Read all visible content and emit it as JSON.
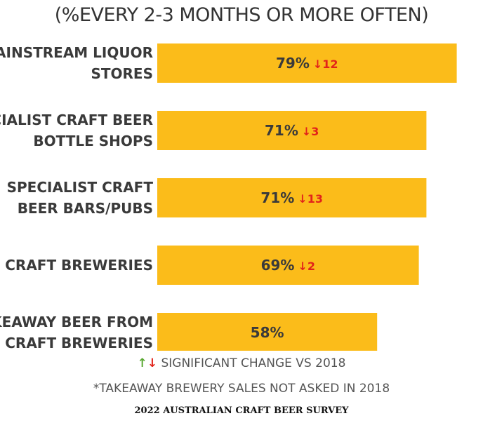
{
  "title": "(%EVERY 2-3 MONTHS OR MORE OFTEN)",
  "colors": {
    "bar": "#fbbc1a",
    "decrease": "#e2231a",
    "increase": "#5aa832",
    "label": "#3a3a3a"
  },
  "legend": {
    "up_arrow": "↑",
    "down_arrow": "↓",
    "text": "SIGNIFICANT CHANGE VS 2018"
  },
  "footnote": "*TAKEAWAY BREWERY SALES NOT ASKED IN 2018",
  "source": "2022 AUSTRALIAN CRAFT BEER SURVEY",
  "chart_data": {
    "type": "bar",
    "orientation": "horizontal",
    "title": "(%EVERY 2-3 MONTHS OR MORE OFTEN)",
    "xlim": [
      0,
      100
    ],
    "grid": false,
    "categories": [
      [
        "MAINSTREAM LIQUOR",
        "STORES"
      ],
      [
        "SPECIALIST CRAFT BEER",
        "BOTTLE SHOPS"
      ],
      [
        "SPECIALIST CRAFT",
        "BEER BARS/PUBS"
      ],
      [
        "CRAFT BREWERIES"
      ],
      [
        "TAKEAWAY BEER FROM",
        "CRAFT BREWERIES"
      ]
    ],
    "values": [
      79,
      71,
      71,
      69,
      58
    ],
    "value_labels": [
      "79%",
      "71%",
      "71%",
      "69%",
      "58%"
    ],
    "changes": [
      {
        "direction": "down",
        "label": "↓12"
      },
      {
        "direction": "down",
        "label": "↓3"
      },
      {
        "direction": "down",
        "label": "↓13"
      },
      {
        "direction": "down",
        "label": "↓2"
      },
      null
    ]
  }
}
